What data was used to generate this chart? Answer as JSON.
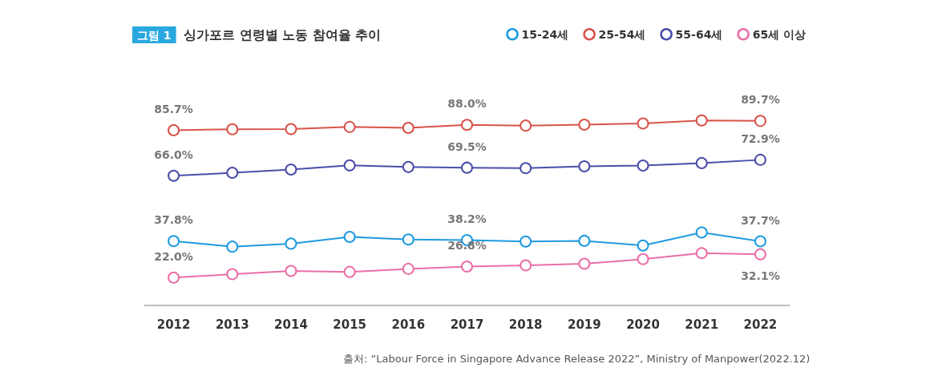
{
  "chart_data": {
    "type": "line",
    "title": "그림 1 싱가포르 연령별 노동 참여율 추이",
    "categories": [
      "2012",
      "2013",
      "2014",
      "2015",
      "2016",
      "2017",
      "2018",
      "2019",
      "2020",
      "2021",
      "2022"
    ],
    "series": [
      {
        "name": "15-24세",
        "color": "#1e9be0",
        "values": [
          37.8,
          35.4,
          36.7,
          39.6,
          38.5,
          38.2,
          37.6,
          37.9,
          35.9,
          41.5,
          37.7
        ],
        "value_labels": [
          "37.8%",
          null,
          null,
          null,
          null,
          "38.2%",
          null,
          null,
          null,
          null,
          "37.7%"
        ]
      },
      {
        "name": "25-54세",
        "color": "#d9534a",
        "values": [
          85.7,
          86.1,
          86.2,
          87.1,
          86.7,
          88.0,
          87.7,
          88.1,
          88.6,
          89.9,
          89.7
        ],
        "value_labels": [
          "85.7%",
          null,
          null,
          null,
          null,
          "88.0%",
          null,
          null,
          null,
          null,
          "89.7%"
        ]
      },
      {
        "name": "55-64세",
        "color": "#4a4ea8",
        "values": [
          66.0,
          67.3,
          68.7,
          70.5,
          69.8,
          69.5,
          69.3,
          70.1,
          70.4,
          71.5,
          72.9
        ],
        "value_labels": [
          "66.0%",
          null,
          null,
          null,
          null,
          "69.5%",
          null,
          null,
          null,
          null,
          "72.9%"
        ]
      },
      {
        "name": "65세 이상",
        "color": "#ea6fa8",
        "values": [
          22.0,
          23.5,
          24.9,
          24.5,
          25.8,
          26.8,
          27.3,
          28.0,
          30.0,
          32.6,
          32.1
        ],
        "value_labels": [
          "22.0%",
          null,
          null,
          null,
          null,
          "26.8%",
          null,
          null,
          null,
          null,
          "32.1%"
        ]
      }
    ],
    "marker": "circle",
    "legend": "top right",
    "grid": false,
    "annotations": [
      "출처: “Labour Force in Singapore Advance Release 2022”, Ministry of Manpower(2022.12)"
    ]
  }
}
